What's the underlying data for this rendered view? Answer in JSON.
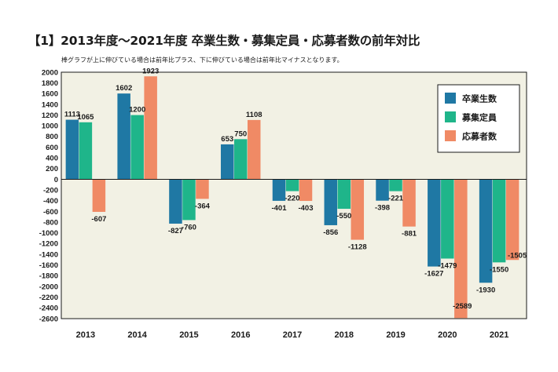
{
  "title": "【1】2013年度〜2021年度 卒業生数・募集定員・応募者数の前年対比",
  "subtitle": "棒グラフが上に伸びている場合は前年比プラス、下に伸びている場合は前年比マイナスとなります。",
  "chart_data": {
    "type": "bar",
    "categories": [
      "2013",
      "2014",
      "2015",
      "2016",
      "2017",
      "2018",
      "2019",
      "2020",
      "2021"
    ],
    "series": [
      {
        "name": "卒業生数",
        "color": "#1f78a4",
        "values": [
          1113,
          1602,
          -827,
          653,
          -401,
          -856,
          -398,
          -1627,
          -1930
        ]
      },
      {
        "name": "募集定員",
        "color": "#1fb58a",
        "values": [
          1065,
          1200,
          -760,
          750,
          -220,
          -550,
          -221,
          -1479,
          -1550
        ]
      },
      {
        "name": "応募者数",
        "color": "#f08a65",
        "values": [
          -607,
          1923,
          -364,
          1108,
          -403,
          -1128,
          -881,
          -2589,
          -1505
        ]
      }
    ],
    "ylim": [
      -2600,
      2000
    ],
    "yticks": [
      2000,
      1800,
      1600,
      1400,
      1200,
      1000,
      800,
      600,
      400,
      200,
      0,
      -200,
      -400,
      -600,
      -800,
      -1000,
      -1200,
      -1400,
      -1600,
      -1800,
      -2000,
      -2200,
      -2400,
      -2600
    ],
    "legend_position": "top-right",
    "background": "#f2f1e4",
    "grid": false
  }
}
